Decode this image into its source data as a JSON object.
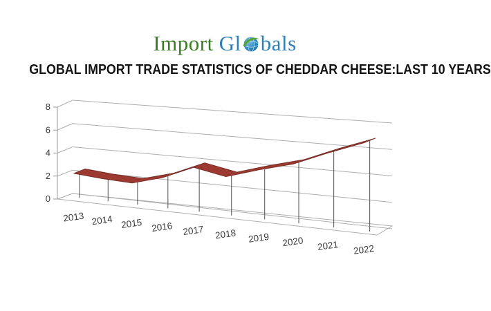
{
  "logo": {
    "word1": "Import",
    "word2_pre": "Gl",
    "word2_post": "bals",
    "word1_color": "#3a7d22",
    "word2_color": "#2e7fb5",
    "globe_blue": "#2a7fb8",
    "globe_swoosh_green": "#58a32a"
  },
  "title": "GLOBAL IMPORT TRADE STATISTICS OF CHEDDAR CHEESE:LAST 10 YEARS",
  "chart_data": {
    "type": "line",
    "style": "3d-ribbon",
    "title": "GLOBAL IMPORT TRADE STATISTICS OF CHEDDAR CHEESE:LAST 10 YEARS",
    "categories": [
      "2013",
      "2014",
      "2015",
      "2016",
      "2017",
      "2018",
      "2019",
      "2020",
      "2021",
      "2022"
    ],
    "values": [
      2.3,
      2.1,
      2.0,
      2.7,
      3.8,
      3.3,
      4.1,
      4.8,
      5.9,
      6.9
    ],
    "xlabel": "",
    "ylabel": "",
    "ylim": [
      0,
      8
    ],
    "yticks": [
      0,
      2,
      4,
      6,
      8
    ],
    "grid": true,
    "legend": "none",
    "drop_lines": true,
    "line_color": "#9c3a31",
    "line_edge_color": "#772e27",
    "grid_color": "#aeaeae",
    "drop_line_color": "#4f4f4f"
  }
}
